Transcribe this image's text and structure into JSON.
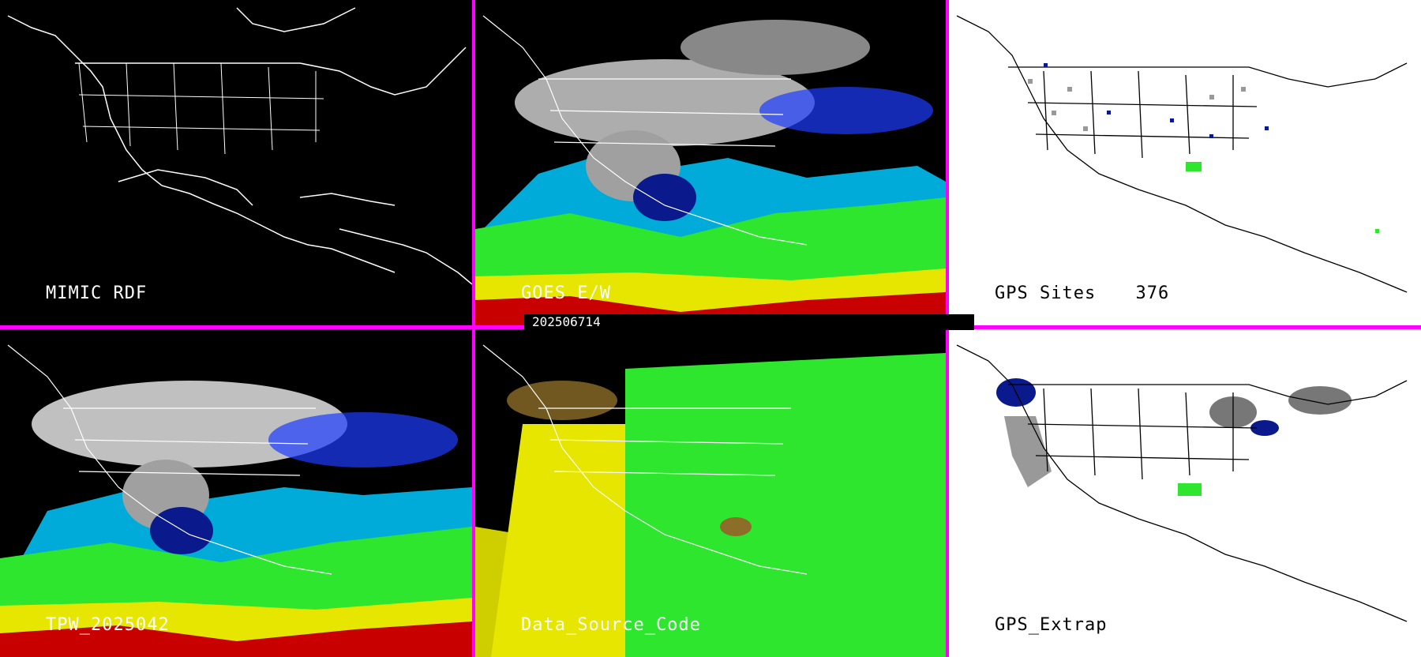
{
  "timestamp": "202506714",
  "panels": {
    "mimic": {
      "label": "MIMIC RDF",
      "background": "#000000"
    },
    "goes": {
      "label": "GOES E/W"
    },
    "gps_sites": {
      "label": "GPS Sites",
      "count": "376",
      "background": "#ffffff"
    },
    "tpw": {
      "label": "TPW_2025042"
    },
    "data_source": {
      "label": "Data_Source_Code"
    },
    "gps_extrap": {
      "label": "GPS_Extrap",
      "background": "#ffffff"
    }
  },
  "colors": {
    "divider": "#ff00ff",
    "coast_on_dark": "#ffffff",
    "coast_on_light": "#000000",
    "palette": [
      "#808080",
      "#c8c8c8",
      "#0a1a8c",
      "#1e3cff",
      "#00e6ff",
      "#2ee62e",
      "#e6e600",
      "#c80000",
      "#8c6e28"
    ]
  }
}
